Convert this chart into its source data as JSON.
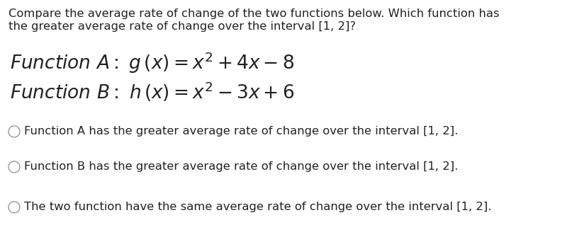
{
  "background_color": "#ffffff",
  "text_color": "#222222",
  "intro_text_line1": "Compare the average rate of change of the two functions below. Which function has",
  "intro_text_line2": "the greater average rate of change over the interval [1, 2]?",
  "intro_fontsize": 11.8,
  "func_A_text": "$\\mathit{Function\\ A} :\\ g\\,(x) = x^2 + 4x - 8$",
  "func_B_text": "$\\mathit{Function\\ B} :\\ h\\,(x) = x^2 - 3x + 6$",
  "func_fontsize": 19,
  "options": [
    "Function A has the greater average rate of change over the interval [1, 2].",
    "Function B has the greater average rate of change over the interval [1, 2].",
    "The two function have the same average rate of change over the interval [1, 2]."
  ],
  "option_fontsize": 11.8,
  "circle_color": "#999999",
  "circle_linewidth": 1.0
}
